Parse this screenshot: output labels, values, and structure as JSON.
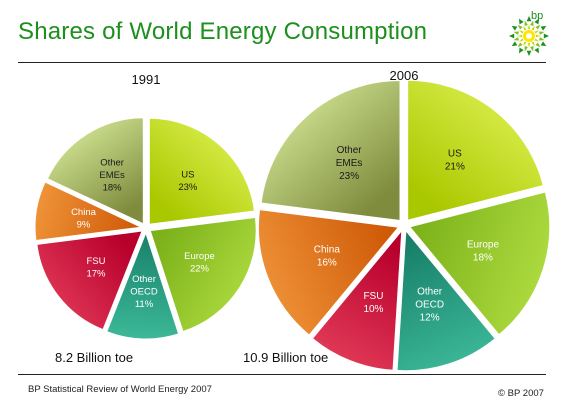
{
  "title": "Shares of World Energy Consumption",
  "logo_text": "bp",
  "source": "BP Statistical Review of World Energy 2007",
  "copyright": "© BP 2007",
  "chart_data": [
    {
      "type": "pie",
      "year": "1991",
      "total": "8.2 Billion toe",
      "slices": [
        {
          "label": [
            "US"
          ],
          "value": 23,
          "display": "23%",
          "color": "#aac800",
          "light": "#dcf050",
          "text": "#1a1a1a"
        },
        {
          "label": [
            "Europe"
          ],
          "value": 22,
          "display": "22%",
          "color": "#7db21a",
          "light": "#aedc40",
          "text": "#ffffff"
        },
        {
          "label": [
            "Other",
            "OECD"
          ],
          "value": 11,
          "display": "11%",
          "color": "#18806a",
          "light": "#3cb898",
          "text": "#ffffff"
        },
        {
          "label": [
            "FSU"
          ],
          "value": 17,
          "display": "17%",
          "color": "#b8002c",
          "light": "#e23a58",
          "text": "#ffffff"
        },
        {
          "label": [
            "China"
          ],
          "value": 9,
          "display": "9%",
          "color": "#cf5a08",
          "light": "#ef9338",
          "text": "#ffffff"
        },
        {
          "label": [
            "Other",
            "EMEs"
          ],
          "value": 18,
          "display": "18%",
          "color": "#7f8c3d",
          "light": "#d4e898",
          "text": "#1a1a1a"
        }
      ]
    },
    {
      "type": "pie",
      "year": "2006",
      "total": "10.9 Billion toe",
      "slices": [
        {
          "label": [
            "US"
          ],
          "value": 21,
          "display": "21%",
          "color": "#aac800",
          "light": "#dcf050",
          "text": "#1a1a1a"
        },
        {
          "label": [
            "Europe"
          ],
          "value": 18,
          "display": "18%",
          "color": "#7db21a",
          "light": "#aedc40",
          "text": "#ffffff"
        },
        {
          "label": [
            "Other",
            "OECD"
          ],
          "value": 12,
          "display": "12%",
          "color": "#18806a",
          "light": "#3cb898",
          "text": "#ffffff"
        },
        {
          "label": [
            "FSU"
          ],
          "value": 10,
          "display": "10%",
          "color": "#b8002c",
          "light": "#e23a58",
          "text": "#ffffff"
        },
        {
          "label": [
            "China"
          ],
          "value": 16,
          "display": "16%",
          "color": "#cf5a08",
          "light": "#ef9338",
          "text": "#ffffff"
        },
        {
          "label": [
            "Other",
            "EMEs"
          ],
          "value": 23,
          "display": "23%",
          "color": "#7f8c3d",
          "light": "#d4e898",
          "text": "#1a1a1a"
        }
      ]
    }
  ]
}
